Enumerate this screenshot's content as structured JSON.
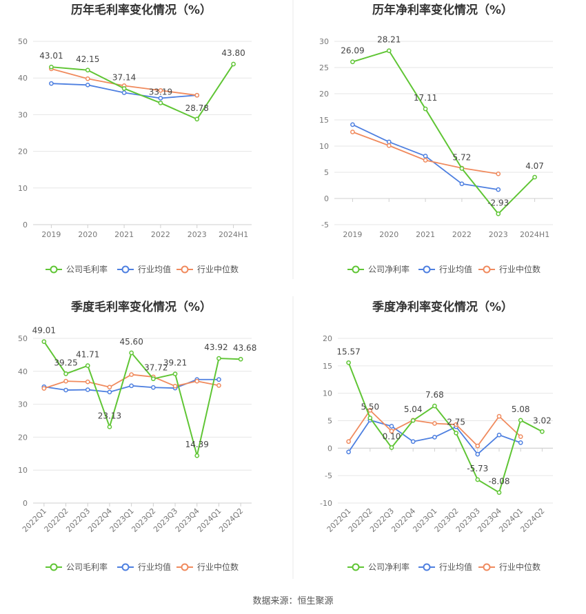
{
  "source": "数据来源：恒生聚源",
  "colors": {
    "company": "#5fc534",
    "avg": "#4d7fe0",
    "median": "#f08a5d"
  },
  "chart_data": [
    {
      "type": "line",
      "title": "历年毛利率变化情况（%）",
      "categories": [
        "2019",
        "2020",
        "2021",
        "2022",
        "2023",
        "2024H1"
      ],
      "ylim": [
        0,
        50
      ],
      "yticks": [
        0,
        10,
        20,
        30,
        40,
        50
      ],
      "x_label_rotate": false,
      "legend": [
        "公司毛利率",
        "行业均值",
        "行业中位数"
      ],
      "series": [
        {
          "name": "公司毛利率",
          "key": "company",
          "values": [
            43.01,
            42.15,
            37.14,
            33.19,
            28.78,
            43.8
          ],
          "labels": [
            "43.01",
            "42.15",
            "37.14",
            "33.19",
            "28.78",
            "43.80"
          ]
        },
        {
          "name": "行业均值",
          "key": "avg",
          "values": [
            38.5,
            38.1,
            36.0,
            34.5,
            35.3,
            null
          ]
        },
        {
          "name": "行业中位数",
          "key": "median",
          "values": [
            42.5,
            39.8,
            37.9,
            36.6,
            35.3,
            null
          ]
        }
      ]
    },
    {
      "type": "line",
      "title": "历年净利率变化情况（%）",
      "categories": [
        "2019",
        "2020",
        "2021",
        "2022",
        "2023",
        "2024H1"
      ],
      "ylim": [
        -5,
        30
      ],
      "yticks": [
        -5,
        0,
        5,
        10,
        15,
        20,
        25,
        30
      ],
      "x_label_rotate": false,
      "legend": [
        "公司净利率",
        "行业均值",
        "行业中位数"
      ],
      "series": [
        {
          "name": "公司净利率",
          "key": "company",
          "values": [
            26.09,
            28.21,
            17.11,
            5.72,
            -2.93,
            4.07
          ],
          "labels": [
            "26.09",
            "28.21",
            "17.11",
            "5.72",
            "-2.93",
            "4.07"
          ]
        },
        {
          "name": "行业均值",
          "key": "avg",
          "values": [
            14.1,
            10.8,
            8.1,
            2.8,
            1.7,
            null
          ]
        },
        {
          "name": "行业中位数",
          "key": "median",
          "values": [
            12.7,
            10.1,
            7.3,
            5.8,
            4.7,
            null
          ]
        }
      ]
    },
    {
      "type": "line",
      "title": "季度毛利率变化情况（%）",
      "categories": [
        "2022Q1",
        "2022Q2",
        "2022Q3",
        "2022Q4",
        "2023Q1",
        "2023Q2",
        "2023Q3",
        "2023Q4",
        "2024Q1",
        "2024Q2"
      ],
      "ylim": [
        0,
        50
      ],
      "yticks": [
        0,
        10,
        20,
        30,
        40,
        50
      ],
      "x_label_rotate": true,
      "legend": [
        "公司毛利率",
        "行业均值",
        "行业中位数"
      ],
      "series": [
        {
          "name": "公司毛利率",
          "key": "company",
          "values": [
            49.01,
            39.25,
            41.71,
            23.13,
            45.6,
            37.72,
            39.21,
            14.39,
            43.92,
            43.68
          ],
          "labels": [
            "49.01",
            "39.25",
            "41.71",
            "23.13",
            "45.60",
            "37.72",
            "39.21",
            "14.39",
            "43.92",
            "43.68"
          ]
        },
        {
          "name": "行业均值",
          "key": "avg",
          "values": [
            35.3,
            34.3,
            34.4,
            33.7,
            35.6,
            35.1,
            34.9,
            37.5,
            37.5,
            null
          ]
        },
        {
          "name": "行业中位数",
          "key": "median",
          "values": [
            34.8,
            37.0,
            36.8,
            35.2,
            39.0,
            38.3,
            35.5,
            37.0,
            35.7,
            null
          ]
        }
      ]
    },
    {
      "type": "line",
      "title": "季度净利率变化情况（%）",
      "categories": [
        "2022Q1",
        "2022Q2",
        "2022Q3",
        "2022Q4",
        "2023Q1",
        "2023Q2",
        "2023Q3",
        "2023Q4",
        "2024Q1",
        "2024Q2"
      ],
      "ylim": [
        -10,
        20
      ],
      "yticks": [
        -10,
        -5,
        0,
        5,
        10,
        15,
        20
      ],
      "x_label_rotate": true,
      "legend": [
        "公司净利率",
        "行业均值",
        "行业中位数"
      ],
      "series": [
        {
          "name": "公司净利率",
          "key": "company",
          "values": [
            15.57,
            5.5,
            0.1,
            5.04,
            7.68,
            2.75,
            -5.73,
            -8.08,
            5.08,
            3.02
          ],
          "labels": [
            "15.57",
            "5.50",
            "0.10",
            "5.04",
            "7.68",
            "2.75",
            "-5.73",
            "-8.08",
            "5.08",
            "3.02"
          ]
        },
        {
          "name": "行业均值",
          "key": "avg",
          "values": [
            -0.7,
            5.1,
            4.0,
            1.2,
            2.0,
            3.9,
            -1.1,
            2.4,
            1.0,
            null
          ]
        },
        {
          "name": "行业中位数",
          "key": "median",
          "values": [
            1.2,
            6.9,
            3.1,
            5.1,
            4.5,
            4.3,
            0.4,
            5.8,
            2.1,
            null
          ]
        }
      ]
    }
  ]
}
